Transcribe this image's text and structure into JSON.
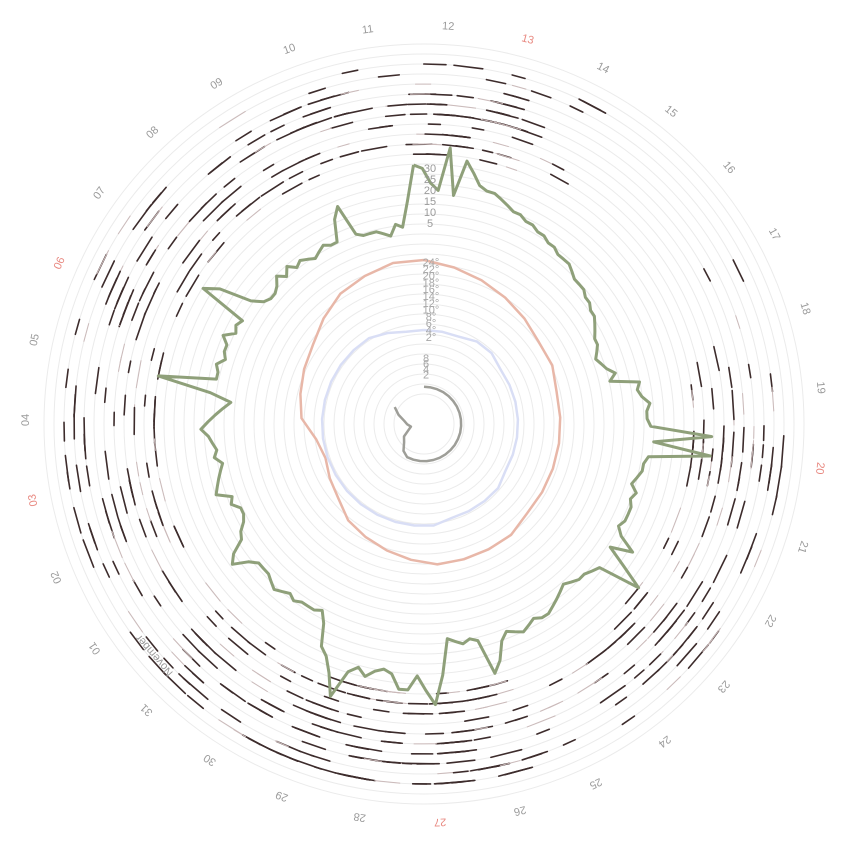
{
  "chart_data": {
    "type": "radial",
    "title": "",
    "month_label": "November",
    "days": [
      {
        "label": "12",
        "weekend": false
      },
      {
        "label": "13",
        "weekend": true
      },
      {
        "label": "14",
        "weekend": false
      },
      {
        "label": "15",
        "weekend": false
      },
      {
        "label": "16",
        "weekend": false
      },
      {
        "label": "17",
        "weekend": false
      },
      {
        "label": "18",
        "weekend": false
      },
      {
        "label": "19",
        "weekend": false
      },
      {
        "label": "20",
        "weekend": true
      },
      {
        "label": "21",
        "weekend": false
      },
      {
        "label": "22",
        "weekend": false
      },
      {
        "label": "23",
        "weekend": false
      },
      {
        "label": "24",
        "weekend": false
      },
      {
        "label": "25",
        "weekend": false
      },
      {
        "label": "26",
        "weekend": false
      },
      {
        "label": "27",
        "weekend": true
      },
      {
        "label": "28",
        "weekend": false
      },
      {
        "label": "29",
        "weekend": false
      },
      {
        "label": "30",
        "weekend": false
      },
      {
        "label": "31",
        "weekend": false
      },
      {
        "label": "01",
        "weekend": false
      },
      {
        "label": "02",
        "weekend": false
      },
      {
        "label": "03",
        "weekend": true
      },
      {
        "label": "04",
        "weekend": false
      },
      {
        "label": "05",
        "weekend": false
      },
      {
        "label": "06",
        "weekend": true
      },
      {
        "label": "07",
        "weekend": false
      },
      {
        "label": "08",
        "weekend": false
      },
      {
        "label": "09",
        "weekend": false
      },
      {
        "label": "10",
        "weekend": false
      },
      {
        "label": "11",
        "weekend": false
      }
    ],
    "activity_scale": [
      "30",
      "25",
      "20",
      "15",
      "10",
      "5"
    ],
    "temperature_scale": [
      "24°",
      "22°",
      "20°",
      "18°",
      "16°",
      "14°",
      "12°",
      "10°",
      "8°",
      "6°",
      "4°",
      "2°"
    ],
    "inner_scale": [
      "8",
      "6",
      "4",
      "2"
    ],
    "activity_series": [
      {
        "day": 0,
        "values": [
          22,
          21,
          17,
          15,
          27,
          14
        ]
      },
      {
        "day": 1,
        "values": [
          24,
          21,
          18,
          17,
          17,
          16
        ]
      },
      {
        "day": 2,
        "values": [
          15,
          14,
          14,
          13,
          13,
          12
        ]
      },
      {
        "day": 3,
        "values": [
          12,
          11,
          11,
          10,
          10,
          10
        ]
      },
      {
        "day": 4,
        "values": [
          9,
          8,
          8,
          8,
          7,
          7
        ]
      },
      {
        "day": 5,
        "values": [
          6,
          6,
          5,
          4,
          3,
          3
        ]
      },
      {
        "day": 6,
        "values": [
          2,
          1,
          2,
          3,
          5,
          3
        ]
      },
      {
        "day": 7,
        "values": [
          11,
          10,
          11,
          13,
          12,
          12
        ]
      },
      {
        "day": 8,
        "values": [
          13,
          30,
          14,
          30,
          13,
          12
        ]
      },
      {
        "day": 9,
        "values": [
          12,
          11,
          10,
          12,
          11,
          12
        ]
      },
      {
        "day": 10,
        "values": [
          12,
          12,
          11,
          13,
          18,
          12
        ]
      },
      {
        "day": 11,
        "values": [
          18,
          25,
          13,
          12,
          11,
          11
        ]
      },
      {
        "day": 12,
        "values": [
          10,
          9,
          10,
          11,
          12,
          13
        ]
      },
      {
        "day": 13,
        "values": [
          13,
          12,
          13,
          14,
          13,
          12
        ]
      },
      {
        "day": 14,
        "values": [
          14,
          19,
          22,
          12,
          11,
          12
        ]
      },
      {
        "day": 15,
        "values": [
          11,
          10,
          20,
          28,
          24,
          20
        ]
      },
      {
        "day": 16,
        "values": [
          24,
          24,
          20,
          19,
          20,
          22
        ]
      },
      {
        "day": 17,
        "values": [
          20,
          22,
          30,
          24,
          20,
          18
        ]
      },
      {
        "day": 18,
        "values": [
          12,
          9,
          10,
          10,
          10,
          11
        ]
      },
      {
        "day": 19,
        "values": [
          10,
          11,
          12,
          11,
          10,
          10
        ]
      },
      {
        "day": 20,
        "values": [
          10,
          12,
          16,
          14,
          10,
          9
        ]
      },
      {
        "day": 21,
        "values": [
          7,
          6,
          6,
          8,
          7,
          11
        ]
      },
      {
        "day": 22,
        "values": [
          10,
          9,
          8,
          7,
          9,
          8
        ]
      },
      {
        "day": 23,
        "values": [
          9,
          10,
          12,
          10,
          8,
          6
        ]
      },
      {
        "day": 24,
        "values": [
          4,
          10,
          25,
          9,
          9,
          10
        ]
      },
      {
        "day": 25,
        "values": [
          8,
          9,
          9,
          11,
          8,
          9
        ]
      },
      {
        "day": 26,
        "values": [
          8,
          22,
          18,
          9,
          6,
          5
        ]
      },
      {
        "day": 27,
        "values": [
          5,
          6,
          8,
          6,
          8,
          6
        ]
      },
      {
        "day": 28,
        "values": [
          7,
          6,
          5,
          6,
          7,
          6
        ]
      },
      {
        "day": 29,
        "values": [
          6,
          12,
          15,
          6,
          5,
          5
        ]
      },
      {
        "day": 30,
        "values": [
          5,
          4,
          3,
          6,
          5,
          12
        ]
      }
    ],
    "temperature_high": [
      20,
      19,
      18,
      17,
      16,
      15,
      15,
      14,
      14,
      14,
      14,
      14,
      14,
      15,
      15,
      15,
      15,
      14,
      13,
      12,
      11,
      9,
      8,
      7,
      8,
      11,
      12,
      13,
      14,
      16,
      18,
      19,
      20
    ],
    "temperature_low": [
      9,
      9,
      9,
      10,
      10,
      9,
      9,
      9,
      9,
      9,
      9,
      9,
      10,
      10,
      10,
      10,
      11,
      11,
      11,
      11,
      11,
      11,
      11,
      11,
      11,
      11,
      11,
      11,
      11,
      11,
      11,
      10,
      9
    ],
    "inner_series": [
      8,
      8,
      8,
      8,
      8,
      8,
      8,
      8,
      8,
      8,
      8,
      8,
      8,
      8,
      8,
      8,
      8,
      8,
      8,
      8,
      8,
      7,
      5,
      4,
      2,
      1,
      2,
      3,
      5,
      7
    ],
    "events": [
      {
        "day": 0,
        "density": 0.9
      },
      {
        "day": 1,
        "density": 0.8
      },
      {
        "day": 2,
        "density": 0.15
      },
      {
        "day": 5,
        "density": 0.05
      },
      {
        "day": 6,
        "density": 0.05
      },
      {
        "day": 7,
        "density": 0.3
      },
      {
        "day": 8,
        "density": 1.0
      },
      {
        "day": 9,
        "density": 0.25
      },
      {
        "day": 10,
        "density": 0.3
      },
      {
        "day": 11,
        "density": 0.9
      },
      {
        "day": 12,
        "density": 0.35
      },
      {
        "day": 13,
        "density": 0.15
      },
      {
        "day": 14,
        "density": 0.7
      },
      {
        "day": 15,
        "density": 0.9
      },
      {
        "day": 16,
        "density": 1.0
      },
      {
        "day": 17,
        "density": 0.8
      },
      {
        "day": 18,
        "density": 0.55
      },
      {
        "day": 19,
        "density": 0.6
      },
      {
        "day": 20,
        "density": 0.2
      },
      {
        "day": 21,
        "density": 0.55
      },
      {
        "day": 22,
        "density": 0.5
      },
      {
        "day": 23,
        "density": 0.5
      },
      {
        "day": 24,
        "density": 0.3
      },
      {
        "day": 25,
        "density": 0.6
      },
      {
        "day": 26,
        "density": 0.55
      },
      {
        "day": 27,
        "density": 0.35
      },
      {
        "day": 28,
        "density": 0.35
      },
      {
        "day": 29,
        "density": 0.55
      },
      {
        "day": 30,
        "density": 0.25
      }
    ],
    "colors": {
      "rings": "#ebebeb",
      "activity": "#8fa07a",
      "temperature_high": "#e8b7a8",
      "temperature_low": "#d9def5",
      "inner": "#9e9e98",
      "events": "#3d2c2c",
      "weekend_label": "#e8877f",
      "label": "#9a9a9a"
    }
  }
}
